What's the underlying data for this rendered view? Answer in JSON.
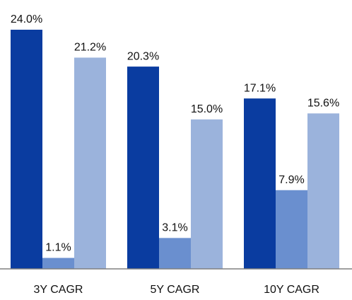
{
  "chart_data": {
    "type": "bar",
    "categories": [
      "3Y CAGR",
      "5Y CAGR",
      "10Y CAGR"
    ],
    "series": [
      {
        "color": "#0a3ca0",
        "values": [
          24.0,
          20.3,
          17.1
        ],
        "value_labels": [
          "24.0%",
          "20.3%",
          "17.1%"
        ]
      },
      {
        "color": "#6a8fcf",
        "values": [
          1.1,
          3.1,
          7.9
        ],
        "value_labels": [
          "1.1%",
          "3.1%",
          "7.9%"
        ]
      },
      {
        "color": "#9bb3dc",
        "values": [
          21.2,
          15.0,
          15.6
        ],
        "value_labels": [
          "21.2%",
          "15.0%",
          "15.6%"
        ]
      }
    ]
  }
}
